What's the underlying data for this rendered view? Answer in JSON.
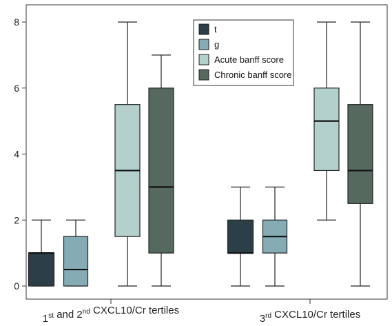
{
  "chart_data": {
    "type": "box",
    "ylim": [
      0,
      8
    ],
    "yticks": [
      "0",
      "2",
      "4",
      "6",
      "8"
    ],
    "categories": [
      {
        "pre": "1",
        "sup1": "st",
        "mid": " and 2",
        "sup2": "nd",
        "post": " CXCL10/Cr tertiles"
      },
      {
        "pre": "3",
        "sup1": "rd",
        "mid": "",
        "sup2": "",
        "post": " CXCL10/Cr tertiles"
      }
    ],
    "legend_position": "top-right",
    "series": [
      {
        "name": "t",
        "color": "#2c3f48",
        "boxes": [
          {
            "min": 0,
            "q1": 0,
            "median": 1,
            "q3": 1,
            "max": 2
          },
          {
            "min": 0,
            "q1": 1,
            "median": 1,
            "q3": 2,
            "max": 3
          }
        ]
      },
      {
        "name": "g",
        "color": "#85abb5",
        "boxes": [
          {
            "min": 0,
            "q1": 0,
            "median": 0.5,
            "q3": 1.5,
            "max": 2
          },
          {
            "min": 0,
            "q1": 1,
            "median": 1.5,
            "q3": 2,
            "max": 3
          }
        ]
      },
      {
        "name": "Acute banff score",
        "color": "#b3d0cd",
        "boxes": [
          {
            "min": 0,
            "q1": 1.5,
            "median": 3.5,
            "q3": 5.5,
            "max": 8
          },
          {
            "min": 2,
            "q1": 3.5,
            "median": 5,
            "q3": 6,
            "max": 8
          }
        ]
      },
      {
        "name": "Chronic banff score",
        "color": "#56695e",
        "boxes": [
          {
            "min": 0,
            "q1": 1,
            "median": 3,
            "q3": 6,
            "max": 7
          },
          {
            "min": 0,
            "q1": 2.5,
            "median": 3.5,
            "q3": 5.5,
            "max": 8
          }
        ]
      }
    ]
  }
}
